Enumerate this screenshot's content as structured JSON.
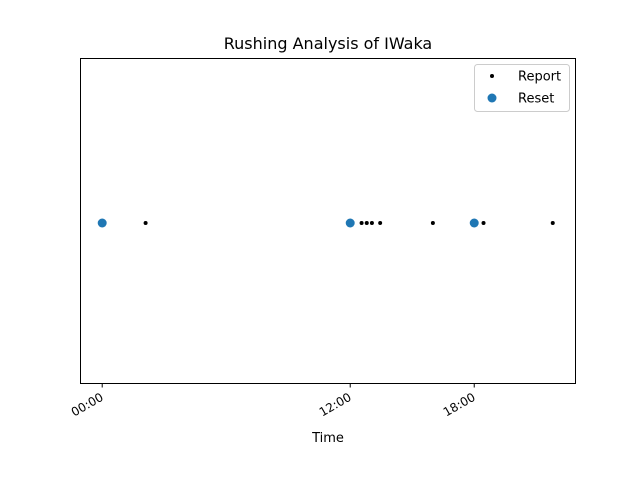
{
  "chart_data": {
    "type": "scatter",
    "title": "Rushing Analysis of IWaka",
    "xlabel": "Time",
    "ylabel": "",
    "x_unit": "hours of day",
    "xlim": [
      -1.05,
      22.9
    ],
    "x_ticks": [
      {
        "value": 0,
        "label": "00:00"
      },
      {
        "value": 12,
        "label": "12:00"
      },
      {
        "value": 18,
        "label": "18:00"
      }
    ],
    "y_ticks": false,
    "grid": false,
    "legend_position": "upper-right",
    "series": [
      {
        "name": "Report",
        "marker": "small-dot",
        "color": "#000000",
        "x": [
          2.1,
          12.55,
          12.8,
          13.05,
          13.45,
          16.0,
          18.45,
          21.8
        ],
        "y": [
          0,
          0,
          0,
          0,
          0,
          0,
          0,
          0
        ]
      },
      {
        "name": "Reset",
        "marker": "large-dot",
        "color": "#1f77b4",
        "x": [
          0,
          12.0,
          18.0
        ],
        "y": [
          0,
          0,
          0
        ]
      }
    ]
  }
}
